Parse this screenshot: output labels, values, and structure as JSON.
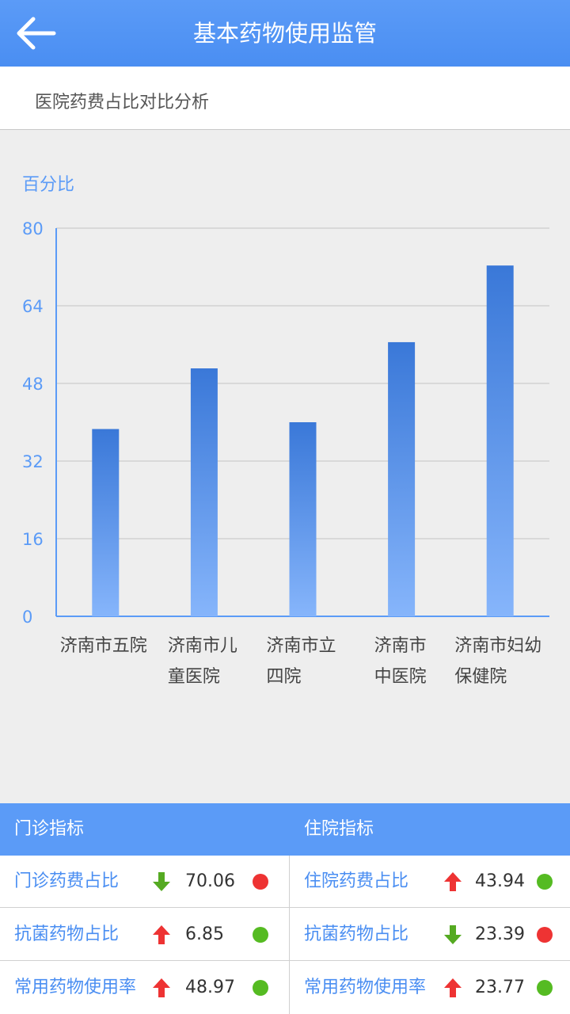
{
  "header": {
    "title": "基本药物使用监管",
    "back_icon": "arrow-left-icon"
  },
  "subheader": {
    "title": "医院药费占比对比分析"
  },
  "chart_data": {
    "type": "bar",
    "ylabel": "百分比",
    "ylim": [
      0,
      80
    ],
    "yticks": [
      "80",
      "64",
      "48",
      "32",
      "16",
      "0"
    ],
    "categories": [
      [
        "济南市五院"
      ],
      [
        "济南市儿",
        "童医院"
      ],
      [
        "济南市立",
        "四院"
      ],
      [
        "济南市",
        "中医院"
      ],
      [
        "济南市妇幼",
        "保健院"
      ]
    ],
    "values": [
      38.6,
      51.1,
      40.0,
      56.5,
      72.3
    ],
    "grid": true,
    "bar_color_top": "#3a78d8",
    "bar_color_bottom": "#86b5fb",
    "axis_color": "#5b9bf7"
  },
  "indicators": {
    "outpatient_title": "门诊指标",
    "inpatient_title": "住院指标",
    "outpatient": [
      {
        "label": "门诊药费占比",
        "trend": "down",
        "value": "70.06",
        "status": "red"
      },
      {
        "label": "抗菌药物占比",
        "trend": "up",
        "value": "6.85",
        "status": "green"
      },
      {
        "label": "常用药物使用率",
        "trend": "up",
        "value": "48.97",
        "status": "green"
      }
    ],
    "inpatient": [
      {
        "label": "住院药费占比",
        "trend": "up",
        "value": "43.94",
        "status": "green"
      },
      {
        "label": "抗菌药物占比",
        "trend": "down",
        "value": "23.39",
        "status": "red"
      },
      {
        "label": "常用药物使用率",
        "trend": "up",
        "value": "23.77",
        "status": "green"
      }
    ]
  },
  "colors": {
    "primary": "#5b9bf7",
    "up_arrow": "#ee3333",
    "down_arrow": "#55aa22",
    "status_red": "#ee3333",
    "status_green": "#55bb22"
  }
}
